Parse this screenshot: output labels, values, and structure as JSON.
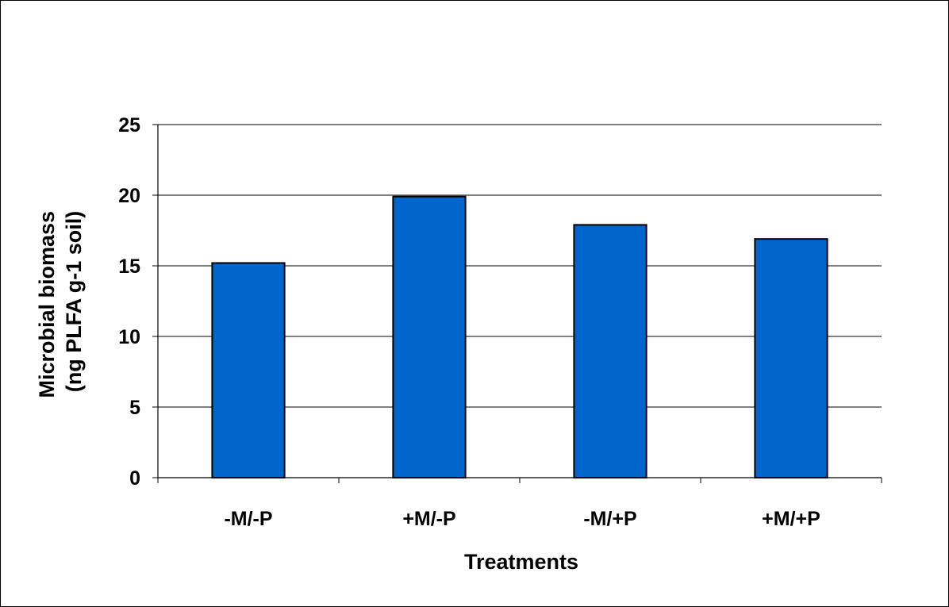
{
  "chart_data": {
    "type": "bar",
    "title": "",
    "categories": [
      "-M/-P",
      "+M/-P",
      "-M/+P",
      "+M/+P"
    ],
    "values": [
      15.2,
      19.9,
      17.9,
      16.9
    ],
    "xlabel": "Treatments",
    "ylabel": [
      "Microbial biomass",
      "(ng PLFA g-1 soil)"
    ],
    "ylim": [
      0,
      25
    ],
    "yticks": [
      0,
      5,
      10,
      15,
      20,
      25
    ],
    "grid": true,
    "legend": "none",
    "bar_color": "#0066CC",
    "bar_edge_color": "#000000"
  }
}
